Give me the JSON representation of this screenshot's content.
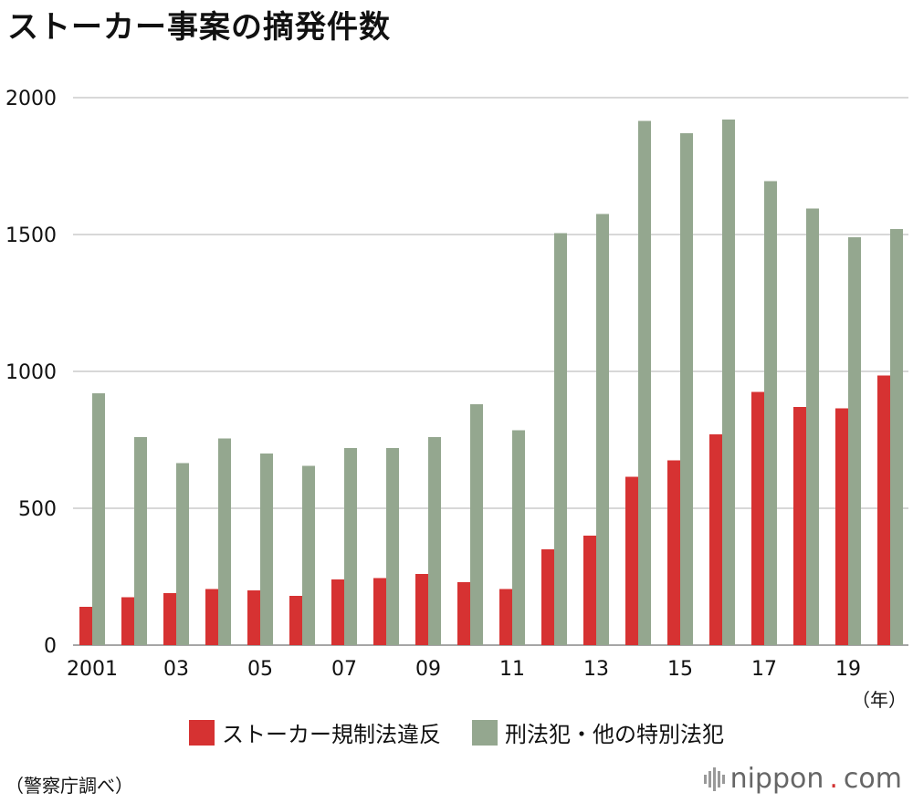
{
  "title": "ストーカー事案の摘発件数",
  "source": "（警察庁調べ）",
  "logo": {
    "name": "nippon",
    "dot": ".",
    "suffix": "com"
  },
  "colors": {
    "series1": "#d63232",
    "series2": "#94a78f",
    "grid": "#cccccc",
    "axis": "#888888"
  },
  "chart_data": {
    "type": "bar",
    "title": "ストーカー事案の摘発件数",
    "xlabel": "（年）",
    "ylabel": "",
    "ylim": [
      0,
      2000
    ],
    "yticks": [
      0,
      500,
      1000,
      1500,
      2000
    ],
    "categories": [
      "2001",
      "02",
      "03",
      "04",
      "05",
      "06",
      "07",
      "08",
      "09",
      "10",
      "11",
      "12",
      "13",
      "14",
      "15",
      "16",
      "17",
      "18",
      "19",
      "20"
    ],
    "xtick_labels": [
      "2001",
      "",
      "03",
      "",
      "05",
      "",
      "07",
      "",
      "09",
      "",
      "11",
      "",
      "13",
      "",
      "15",
      "",
      "17",
      "",
      "19",
      ""
    ],
    "series": [
      {
        "name": "ストーカー規制法違反",
        "values": [
          140,
          175,
          190,
          205,
          200,
          180,
          240,
          245,
          260,
          230,
          205,
          350,
          400,
          615,
          675,
          770,
          925,
          870,
          865,
          985
        ]
      },
      {
        "name": "刑法犯・他の特別法犯",
        "values": [
          920,
          760,
          665,
          755,
          700,
          655,
          720,
          720,
          760,
          880,
          785,
          1505,
          1575,
          1915,
          1870,
          1920,
          1695,
          1595,
          1490,
          1520
        ]
      }
    ],
    "legend_position": "bottom"
  }
}
